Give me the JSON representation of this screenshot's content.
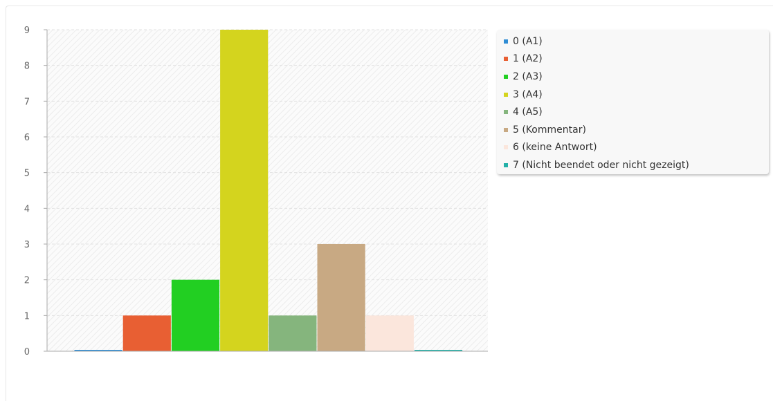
{
  "chart_data": {
    "type": "bar",
    "categories": [
      "0 (A1)",
      "1 (A2)",
      "2 (A3)",
      "3 (A4)",
      "4 (A5)",
      "5 (Kommentar)",
      "6 (keine Antwort)",
      "7 (Nicht beendet oder nicht gezeigt)"
    ],
    "values": [
      0,
      1,
      2,
      9,
      1,
      3,
      1,
      0
    ],
    "colors": [
      "#2f8cd4",
      "#e85f33",
      "#22cf22",
      "#d4d41e",
      "#85b57d",
      "#c8a983",
      "#fbe6dc",
      "#23b0a8"
    ],
    "ylim": [
      0,
      9
    ],
    "yticks": [
      "0",
      "1",
      "2",
      "3",
      "4",
      "5",
      "6",
      "7",
      "8",
      "9"
    ],
    "grid": true,
    "legend_position": "right",
    "title": "",
    "xlabel": "",
    "ylabel": ""
  }
}
